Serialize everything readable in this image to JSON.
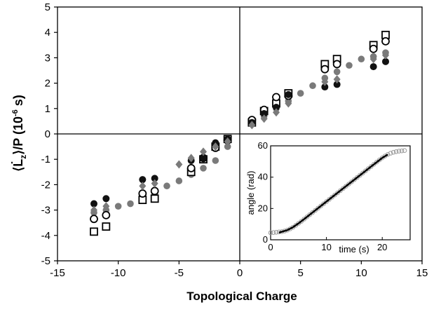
{
  "chart_data": [
    {
      "type": "scatter",
      "title": "",
      "xlabel": "Topological Charge",
      "ylabel": "⟨L̇z⟩/P (10⁻⁶ s)",
      "ylabel_parts": {
        "main": "⟨L̇",
        "sub": "z",
        "rest": "⟩/P (10",
        "sup": "-6",
        "unit": " s)"
      },
      "xlim": [
        -15,
        15
      ],
      "ylim": [
        -5,
        5
      ],
      "xticks": [
        "-15",
        "-10",
        "-5",
        "0",
        "5",
        "10",
        "15"
      ],
      "yticks": [
        "-5",
        "-4",
        "-3",
        "-2",
        "-1",
        "0",
        "1",
        "2",
        "3",
        "4",
        "5"
      ],
      "axes_through_origin": true,
      "grid": false,
      "colors": {
        "open": "#000000",
        "filled_black": "#111111",
        "gray": "#7a7a7a"
      },
      "series": [
        {
          "marker": "open-square",
          "x": [
            -12,
            -11,
            -8,
            -7,
            -4,
            -3,
            -2,
            -1,
            1,
            2,
            3,
            4,
            7,
            8,
            11,
            12
          ],
          "y": [
            -3.85,
            -3.65,
            -2.6,
            -2.55,
            -1.5,
            -1.0,
            -0.5,
            -0.2,
            0.45,
            0.9,
            1.2,
            1.6,
            2.75,
            2.95,
            3.5,
            3.9
          ]
        },
        {
          "marker": "open-circle",
          "x": [
            -12,
            -11,
            -8,
            -7,
            -4,
            -3,
            -2,
            -1,
            1,
            2,
            3,
            4,
            7,
            8,
            11,
            12
          ],
          "y": [
            -3.35,
            -3.2,
            -2.35,
            -2.25,
            -1.35,
            -0.95,
            -0.55,
            -0.25,
            0.55,
            0.95,
            1.45,
            1.5,
            2.55,
            2.75,
            3.35,
            3.65
          ]
        },
        {
          "marker": "filled-circle",
          "x": [
            -12,
            -11,
            -8,
            -7,
            -4,
            -3,
            -2,
            -1,
            1,
            2,
            3,
            4,
            7,
            8,
            11,
            12
          ],
          "y": [
            -2.75,
            -2.55,
            -1.8,
            -1.75,
            -1.05,
            -0.95,
            -0.35,
            -0.2,
            0.45,
            0.8,
            1.05,
            1.55,
            1.85,
            1.95,
            2.65,
            2.85
          ]
        },
        {
          "marker": "gray-diamond",
          "x": [
            -12,
            -11,
            -8,
            -7,
            -5,
            -4,
            -3,
            -2,
            -1,
            1,
            2,
            3,
            4,
            7,
            8,
            11,
            12
          ],
          "y": [
            -3.0,
            -2.85,
            -2.05,
            -1.95,
            -1.2,
            -0.95,
            -0.7,
            -0.5,
            -0.3,
            0.35,
            0.6,
            0.85,
            1.2,
            2.05,
            2.15,
            2.95,
            3.1
          ]
        },
        {
          "marker": "gray-circle",
          "x": [
            -12,
            -11,
            -10,
            -9,
            -8,
            -7,
            -6,
            -5,
            -4,
            -3,
            -2,
            -1,
            1,
            2,
            3,
            4,
            5,
            6,
            7,
            8,
            9,
            10,
            11,
            12
          ],
          "y": [
            -3.1,
            -3.0,
            -2.85,
            -2.75,
            -2.45,
            -2.35,
            -2.05,
            -1.85,
            -1.6,
            -1.35,
            -1.05,
            -0.5,
            0.4,
            0.7,
            1.0,
            1.3,
            1.6,
            1.9,
            2.2,
            2.45,
            2.7,
            2.95,
            3.05,
            3.2
          ]
        }
      ]
    },
    {
      "type": "line",
      "inset": true,
      "placement": "bottom-right",
      "xlabel": "time (s)",
      "ylabel": "angle (rad)",
      "xlim": [
        0,
        25
      ],
      "ylim": [
        0,
        60
      ],
      "xticks": [
        "0",
        "10",
        "20"
      ],
      "yticks": [
        "0",
        "20",
        "40",
        "60"
      ],
      "series": [
        {
          "style": "gray-open-circles",
          "x": [
            0,
            0.5,
            1,
            1.5,
            2,
            2.5,
            3,
            3.5,
            4,
            4.5,
            5,
            5.5,
            6,
            6.5,
            7,
            7.5,
            8,
            8.5,
            9,
            9.5,
            10,
            10.5,
            11,
            11.5,
            12,
            12.5,
            13,
            13.5,
            14,
            14.5,
            15,
            15.5,
            16,
            16.5,
            17,
            17.5,
            18,
            18.5,
            19,
            19.5,
            20,
            20.5,
            21,
            21.5,
            22,
            22.5,
            23,
            23.5,
            24
          ],
          "y": [
            4.5,
            4.6,
            4.8,
            5.0,
            5.2,
            5.6,
            6.2,
            7.0,
            8.0,
            9.2,
            10.5,
            11.8,
            13.2,
            14.6,
            16.0,
            17.4,
            18.8,
            20.2,
            21.6,
            23.0,
            24.4,
            25.8,
            27.2,
            28.6,
            30.0,
            31.4,
            32.8,
            34.2,
            35.6,
            37.0,
            38.4,
            39.8,
            41.2,
            42.6,
            44.0,
            45.4,
            46.8,
            48.2,
            49.6,
            51.0,
            52.3,
            53.5,
            54.5,
            55.3,
            55.9,
            56.3,
            56.6,
            56.8,
            57.0
          ]
        },
        {
          "style": "black-line",
          "x": [
            1.5,
            3,
            4,
            5,
            6,
            8,
            10,
            12,
            14,
            16,
            18,
            20,
            21
          ],
          "y": [
            4.6,
            6.2,
            8.0,
            10.5,
            13.2,
            18.8,
            24.4,
            30.0,
            35.6,
            41.2,
            46.8,
            52.3,
            54.5
          ]
        }
      ]
    }
  ]
}
